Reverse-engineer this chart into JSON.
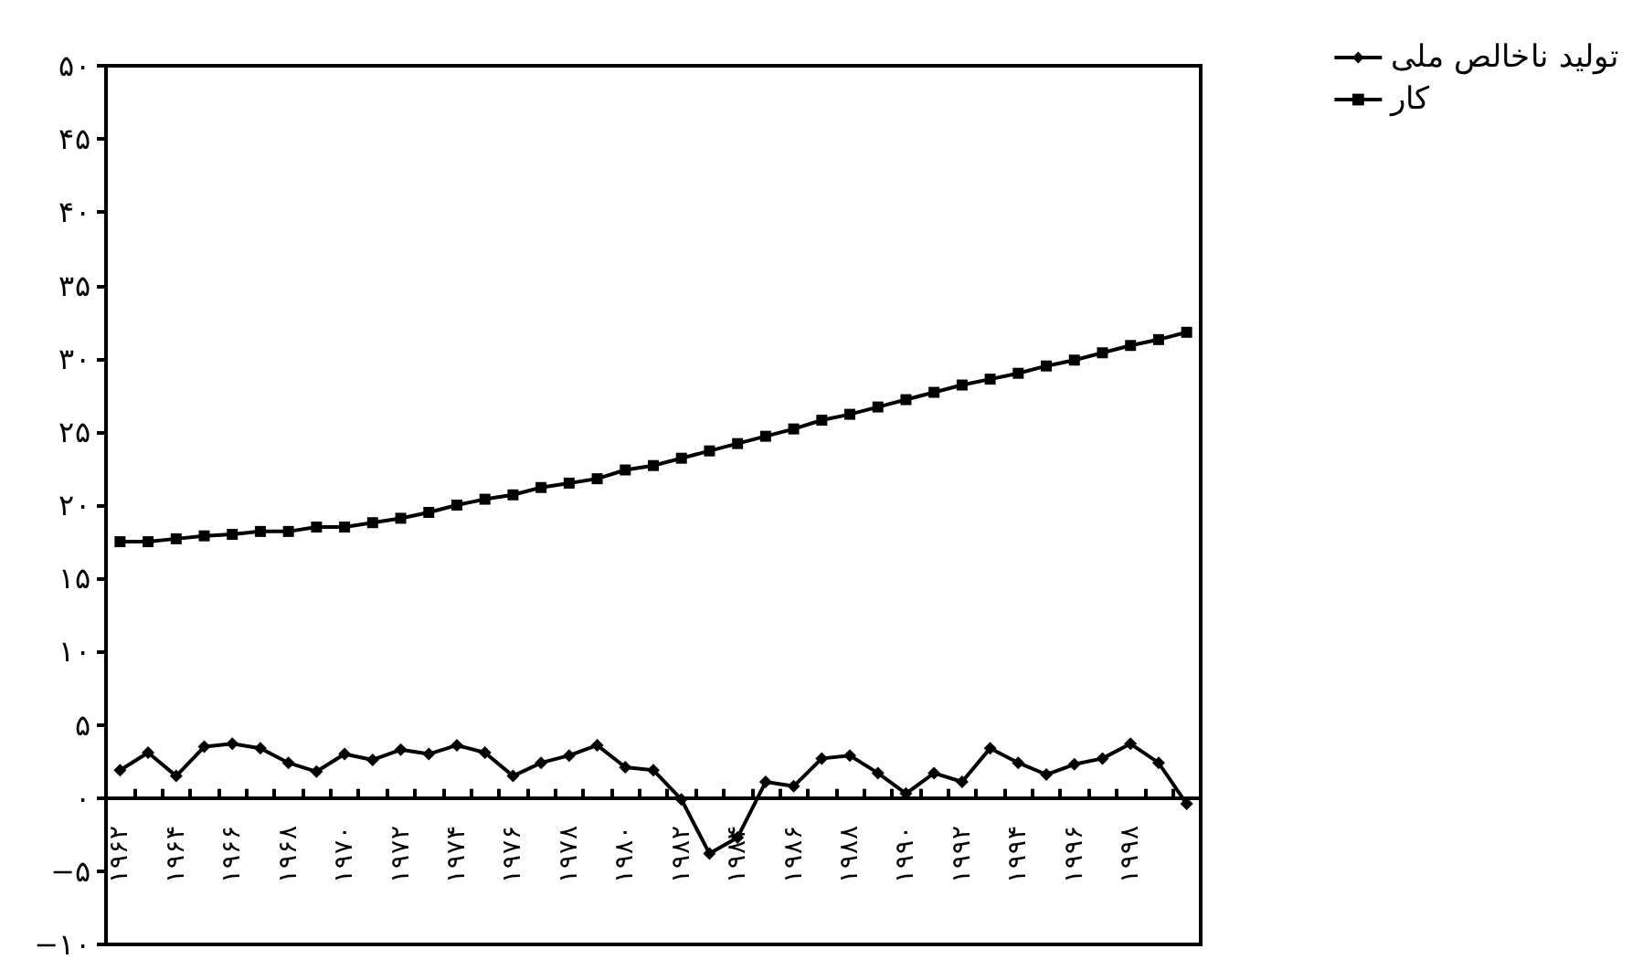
{
  "chart_data": {
    "type": "line",
    "categories": [
      "۱۹۶۲",
      null,
      "۱۹۶۴",
      null,
      "۱۹۶۶",
      null,
      "۱۹۶۸",
      null,
      "۱۹۷۰",
      null,
      "۱۹۷۲",
      null,
      "۱۹۷۴",
      null,
      "۱۹۷۶",
      null,
      "۱۹۷۸",
      null,
      "۱۹۸۰",
      null,
      "۱۹۸۲",
      null,
      "۱۹۸۴",
      null,
      "۱۹۸۶",
      null,
      "۱۹۸۸",
      null,
      "۱۹۹۰",
      null,
      "۱۹۹۲",
      null,
      "۱۹۹۴",
      null,
      "۱۹۹۶",
      null,
      "۱۹۹۸",
      null,
      null
    ],
    "series": [
      {
        "name": "تولید ناخالص ملی",
        "color": "#000000",
        "marker": "diamond",
        "values": [
          1.9,
          3.1,
          1.5,
          3.5,
          3.7,
          3.4,
          2.4,
          1.8,
          3.0,
          2.6,
          3.3,
          3.0,
          3.6,
          3.1,
          1.5,
          2.4,
          2.9,
          3.6,
          2.1,
          1.9,
          -0.1,
          -3.8,
          -2.7,
          1.1,
          0.8,
          2.7,
          2.9,
          1.7,
          0.3,
          1.7,
          1.1,
          3.4,
          2.4,
          1.6,
          2.3,
          2.7,
          3.7,
          2.4,
          -0.4
        ]
      },
      {
        "name": "کار",
        "color": "#000000",
        "marker": "square",
        "values": [
          17.5,
          17.5,
          17.7,
          17.9,
          18.0,
          18.2,
          18.2,
          18.5,
          18.5,
          18.8,
          19.1,
          19.5,
          20.0,
          20.4,
          20.7,
          21.2,
          21.5,
          21.8,
          22.4,
          22.7,
          23.2,
          23.7,
          24.2,
          24.7,
          25.2,
          25.8,
          26.2,
          26.7,
          27.2,
          27.7,
          28.2,
          28.6,
          29.0,
          29.5,
          29.9,
          30.4,
          30.9,
          31.3,
          31.8
        ]
      }
    ],
    "ylim": [
      -10,
      50
    ],
    "yticks": [
      {
        "value": -10,
        "label": "−۱۰"
      },
      {
        "value": -5,
        "label": "−۵"
      },
      {
        "value": 0,
        "label": "۰"
      },
      {
        "value": 5,
        "label": "۵"
      },
      {
        "value": 10,
        "label": "۱۰"
      },
      {
        "value": 15,
        "label": "۱۵"
      },
      {
        "value": 20,
        "label": "۲۰"
      },
      {
        "value": 25,
        "label": "۲۵"
      },
      {
        "value": 30,
        "label": "۳۰"
      },
      {
        "value": 35,
        "label": "۳۵"
      },
      {
        "value": 40,
        "label": "۴۰"
      },
      {
        "value": 45,
        "label": "۴۵"
      },
      {
        "value": 50,
        "label": "۵۰"
      }
    ],
    "legend": "top right",
    "line_style": "solid"
  }
}
